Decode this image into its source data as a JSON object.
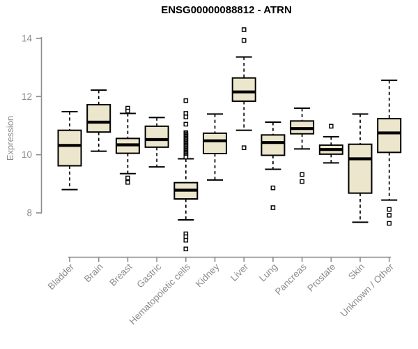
{
  "chart_data": {
    "type": "boxplot",
    "title": "ENSG00000088812 - ATRN",
    "ylabel": "Expression",
    "xlabel": "",
    "ylim": [
      8,
      14
    ],
    "yticks": [
      "8",
      "10",
      "12",
      "14"
    ],
    "grid": false,
    "legend": "none",
    "categories": [
      "Bladder",
      "Brain",
      "Breast",
      "Gastric",
      "Hematopoietic cells",
      "Kidney",
      "Liver",
      "Lung",
      "Pancreas",
      "Prostate",
      "Skin",
      "Unknown / Other"
    ],
    "series": [
      {
        "name": "Bladder",
        "whisker_low": 8.8,
        "q1": 9.62,
        "median": 10.32,
        "q3": 10.84,
        "whisker_high": 11.48,
        "outliers": []
      },
      {
        "name": "Brain",
        "whisker_low": 10.12,
        "q1": 10.78,
        "median": 11.12,
        "q3": 11.72,
        "whisker_high": 12.22,
        "outliers": []
      },
      {
        "name": "Breast",
        "whisker_low": 9.35,
        "q1": 10.05,
        "median": 10.34,
        "q3": 10.56,
        "whisker_high": 11.42,
        "outliers": [
          11.6,
          11.5,
          9.2,
          9.05
        ]
      },
      {
        "name": "Gastric",
        "whisker_low": 9.58,
        "q1": 10.26,
        "median": 10.52,
        "q3": 10.98,
        "whisker_high": 11.28,
        "outliers": []
      },
      {
        "name": "Hematopoietic cells",
        "whisker_low": 7.76,
        "q1": 8.48,
        "median": 8.78,
        "q3": 9.04,
        "whisker_high": 9.86,
        "outliers": [
          11.86,
          11.42,
          11.3,
          11.05,
          10.76,
          10.72,
          10.68,
          10.64,
          10.6,
          10.56,
          10.52,
          10.48,
          10.44,
          10.4,
          10.36,
          10.32,
          10.28,
          10.24,
          10.2,
          10.16,
          10.12,
          10.08,
          10.04,
          10.0,
          9.96,
          9.92,
          7.28,
          7.18,
          7.06,
          6.76
        ]
      },
      {
        "name": "Kidney",
        "whisker_low": 9.13,
        "q1": 10.04,
        "median": 10.48,
        "q3": 10.74,
        "whisker_high": 11.4,
        "outliers": []
      },
      {
        "name": "Liver",
        "whisker_low": 10.84,
        "q1": 11.84,
        "median": 12.16,
        "q3": 12.64,
        "whisker_high": 13.36,
        "outliers": [
          14.3,
          13.93,
          10.24
        ]
      },
      {
        "name": "Lung",
        "whisker_low": 9.5,
        "q1": 9.98,
        "median": 10.42,
        "q3": 10.68,
        "whisker_high": 11.12,
        "outliers": [
          8.86,
          8.18
        ]
      },
      {
        "name": "Pancreas",
        "whisker_low": 10.2,
        "q1": 10.72,
        "median": 10.9,
        "q3": 11.16,
        "whisker_high": 11.6,
        "outliers": [
          9.32,
          9.08
        ]
      },
      {
        "name": "Prostate",
        "whisker_low": 9.72,
        "q1": 10.02,
        "median": 10.18,
        "q3": 10.33,
        "whisker_high": 10.62,
        "outliers": [
          10.98
        ]
      },
      {
        "name": "Skin",
        "whisker_low": 7.68,
        "q1": 8.68,
        "median": 9.86,
        "q3": 10.36,
        "whisker_high": 11.4,
        "outliers": []
      },
      {
        "name": "Unknown / Other",
        "whisker_low": 8.44,
        "q1": 10.08,
        "median": 10.75,
        "q3": 11.24,
        "whisker_high": 12.56,
        "outliers": [
          8.12,
          7.92,
          7.64
        ]
      }
    ]
  },
  "colors": {
    "box_fill": "#ece6cc",
    "box_stroke": "#000000",
    "median": "#000000",
    "whisker": "#000000",
    "outlier_fill": "#ffffff",
    "axis": "#8c8c8c",
    "tick_label": "#8c8c8c",
    "title": "#000000",
    "background": "#ffffff"
  }
}
